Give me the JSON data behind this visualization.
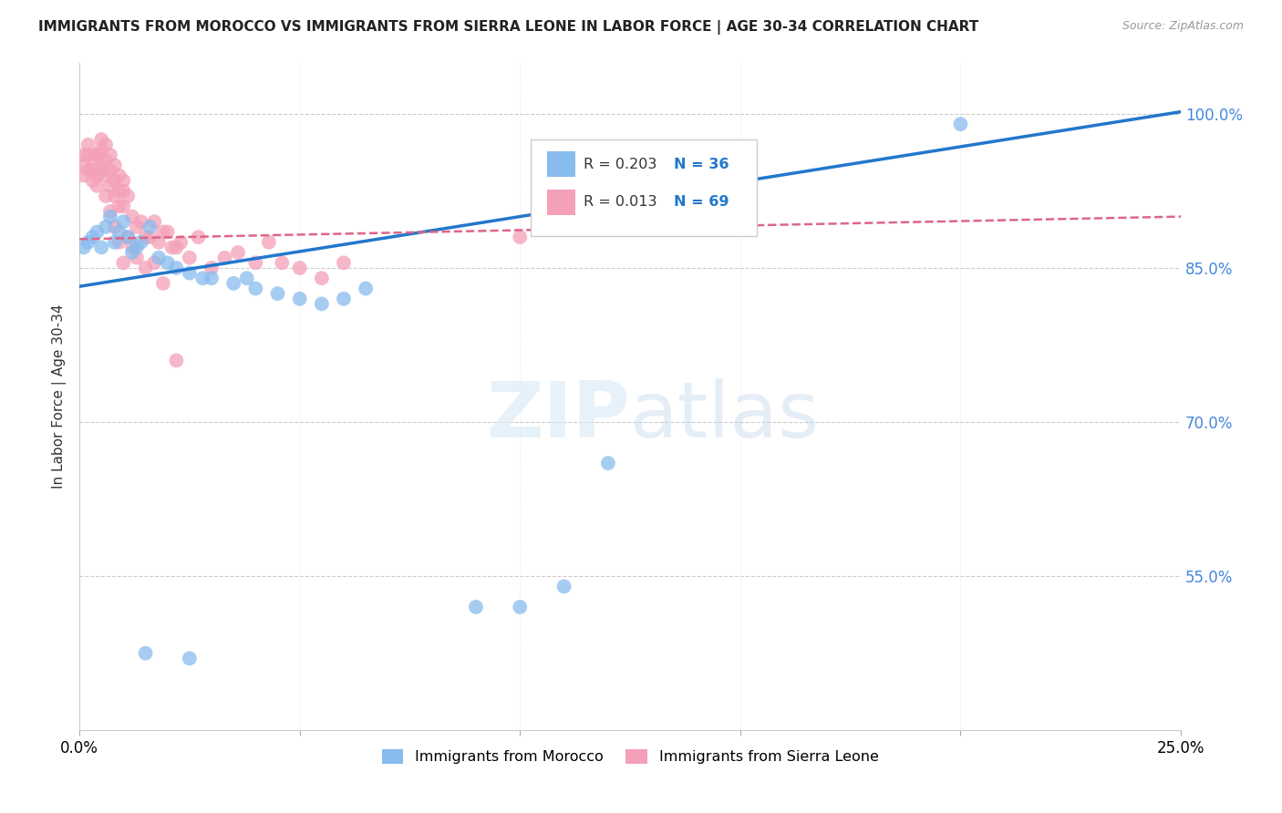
{
  "title": "IMMIGRANTS FROM MOROCCO VS IMMIGRANTS FROM SIERRA LEONE IN LABOR FORCE | AGE 30-34 CORRELATION CHART",
  "source": "Source: ZipAtlas.com",
  "ylabel": "In Labor Force | Age 30-34",
  "x_min": 0.0,
  "x_max": 0.25,
  "y_min": 0.4,
  "y_max": 1.05,
  "y_ticks": [
    0.55,
    0.7,
    0.85,
    1.0
  ],
  "y_tick_labels": [
    "55.0%",
    "70.0%",
    "85.0%",
    "100.0%"
  ],
  "x_ticks": [
    0.0,
    0.05,
    0.1,
    0.15,
    0.2,
    0.25
  ],
  "x_tick_labels": [
    "0.0%",
    "",
    "",
    "",
    "",
    "25.0%"
  ],
  "morocco_color": "#88bbee",
  "sierra_leone_color": "#f4a0b8",
  "morocco_R": 0.203,
  "morocco_N": 36,
  "sierra_leone_R": 0.013,
  "sierra_leone_N": 69,
  "blue_line_color": "#2277cc",
  "pink_line_color": "#dd6688",
  "watermark_zip": "ZIP",
  "watermark_atlas": "atlas",
  "background_color": "#ffffff",
  "grid_color": "#cccccc",
  "morocco_scatter_x": [
    0.001,
    0.002,
    0.003,
    0.004,
    0.005,
    0.006,
    0.007,
    0.008,
    0.009,
    0.01,
    0.011,
    0.012,
    0.013,
    0.014,
    0.016,
    0.018,
    0.02,
    0.022,
    0.025,
    0.028,
    0.03,
    0.035,
    0.038,
    0.04,
    0.045,
    0.05,
    0.055,
    0.06,
    0.065,
    0.09,
    0.1,
    0.11,
    0.12,
    0.2,
    0.015,
    0.025
  ],
  "morocco_scatter_y": [
    0.87,
    0.875,
    0.88,
    0.885,
    0.87,
    0.89,
    0.9,
    0.875,
    0.885,
    0.895,
    0.88,
    0.865,
    0.87,
    0.875,
    0.89,
    0.86,
    0.855,
    0.85,
    0.845,
    0.84,
    0.84,
    0.835,
    0.84,
    0.83,
    0.825,
    0.82,
    0.815,
    0.82,
    0.83,
    0.52,
    0.52,
    0.54,
    0.66,
    0.99,
    0.475,
    0.47
  ],
  "sierra_leone_scatter_x": [
    0.001,
    0.001,
    0.001,
    0.002,
    0.002,
    0.002,
    0.003,
    0.003,
    0.003,
    0.004,
    0.004,
    0.004,
    0.005,
    0.005,
    0.005,
    0.006,
    0.006,
    0.006,
    0.007,
    0.007,
    0.007,
    0.008,
    0.008,
    0.008,
    0.009,
    0.009,
    0.009,
    0.01,
    0.01,
    0.01,
    0.011,
    0.012,
    0.013,
    0.014,
    0.015,
    0.016,
    0.017,
    0.018,
    0.019,
    0.02,
    0.021,
    0.022,
    0.023,
    0.025,
    0.027,
    0.03,
    0.033,
    0.036,
    0.04,
    0.043,
    0.046,
    0.05,
    0.055,
    0.06,
    0.004,
    0.005,
    0.006,
    0.007,
    0.008,
    0.009,
    0.01,
    0.011,
    0.012,
    0.013,
    0.015,
    0.017,
    0.019,
    0.022,
    0.1
  ],
  "sierra_leone_scatter_y": [
    0.96,
    0.95,
    0.94,
    0.97,
    0.96,
    0.945,
    0.955,
    0.945,
    0.935,
    0.96,
    0.94,
    0.93,
    0.975,
    0.965,
    0.95,
    0.97,
    0.955,
    0.94,
    0.96,
    0.945,
    0.93,
    0.95,
    0.935,
    0.92,
    0.94,
    0.925,
    0.91,
    0.935,
    0.925,
    0.91,
    0.92,
    0.9,
    0.89,
    0.895,
    0.88,
    0.88,
    0.895,
    0.875,
    0.885,
    0.885,
    0.87,
    0.87,
    0.875,
    0.86,
    0.88,
    0.85,
    0.86,
    0.865,
    0.855,
    0.875,
    0.855,
    0.85,
    0.84,
    0.855,
    0.96,
    0.945,
    0.92,
    0.905,
    0.89,
    0.875,
    0.855,
    0.88,
    0.87,
    0.86,
    0.85,
    0.855,
    0.835,
    0.76,
    0.88
  ],
  "morocco_trendline_x": [
    0.0,
    0.25
  ],
  "morocco_trendline_y": [
    0.832,
    1.002
  ],
  "sierra_leone_trendline_x": [
    0.0,
    0.25
  ],
  "sierra_leone_trendline_y": [
    0.878,
    0.9
  ]
}
